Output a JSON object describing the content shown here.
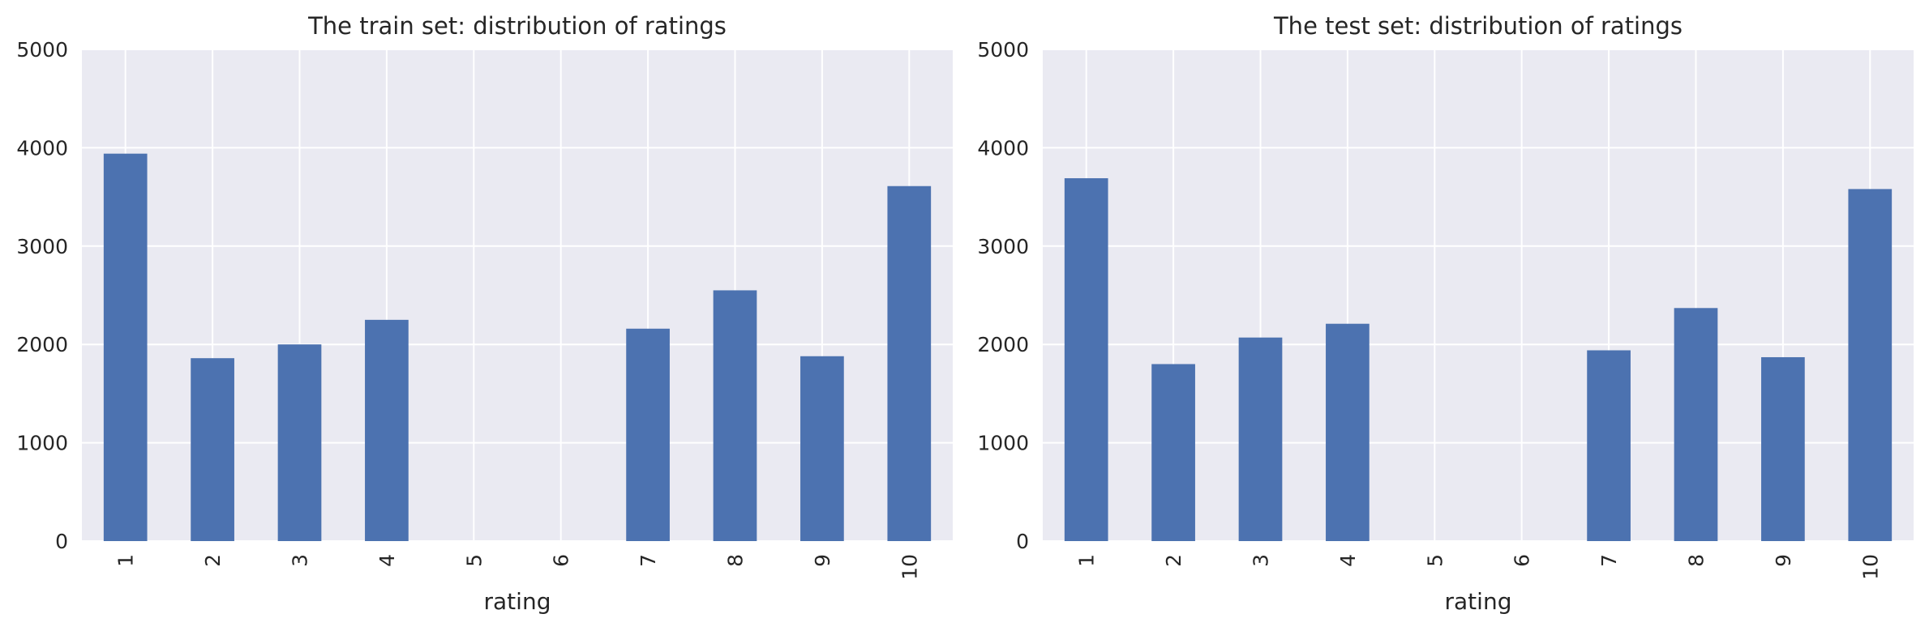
{
  "colors": {
    "bar": "#4c72b0",
    "plot_bg": "#eaeaf2",
    "grid": "#ffffff",
    "text": "#262626"
  },
  "chart_data": [
    {
      "type": "bar",
      "title": "The train set: distribution of ratings",
      "xlabel": "rating",
      "ylabel": "",
      "categories": [
        "1",
        "2",
        "3",
        "4",
        "5",
        "6",
        "7",
        "8",
        "9",
        "10"
      ],
      "values": [
        3940,
        1860,
        2000,
        2250,
        0,
        0,
        2160,
        2550,
        1880,
        3610
      ],
      "ylim": [
        0,
        5000
      ],
      "yticks": [
        "0",
        "1000",
        "2000",
        "3000",
        "4000",
        "5000"
      ],
      "grid": true,
      "legend": "none"
    },
    {
      "type": "bar",
      "title": "The test set: distribution of ratings",
      "xlabel": "rating",
      "ylabel": "",
      "categories": [
        "1",
        "2",
        "3",
        "4",
        "5",
        "6",
        "7",
        "8",
        "9",
        "10"
      ],
      "values": [
        3690,
        1800,
        2070,
        2210,
        0,
        0,
        1940,
        2370,
        1870,
        3580
      ],
      "ylim": [
        0,
        5000
      ],
      "yticks": [
        "0",
        "1000",
        "2000",
        "3000",
        "4000",
        "5000"
      ],
      "grid": true,
      "legend": "none"
    }
  ]
}
